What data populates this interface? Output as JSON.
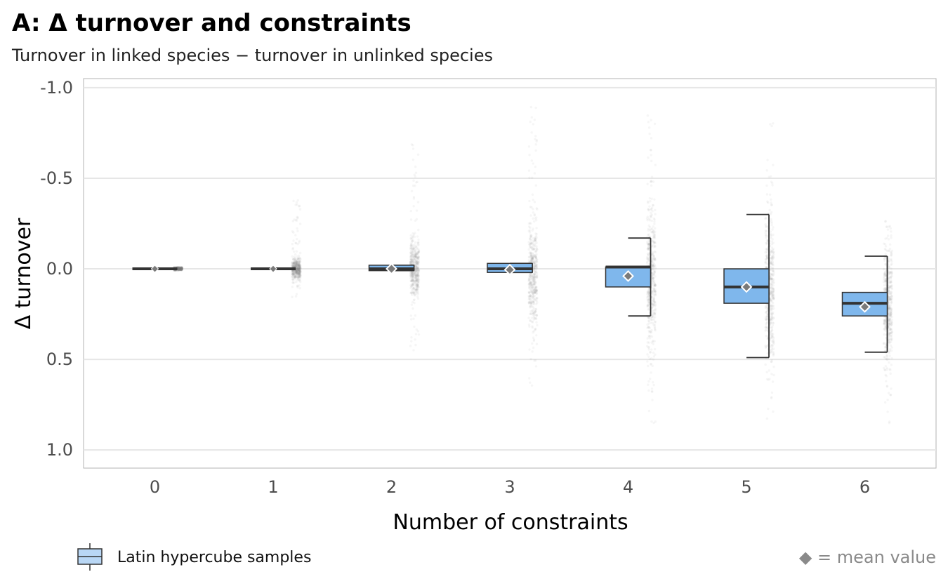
{
  "chart_data": {
    "type": "box",
    "title": "A: Δ turnover and constraints",
    "subtitle": "Turnover in linked species − turnover in unlinked species",
    "xlabel": "Number of constraints",
    "ylabel": "Δ turnover",
    "y_reversed": true,
    "ylim": [
      -1.05,
      1.1
    ],
    "yticks": [
      -1.0,
      -0.5,
      0.0,
      0.5,
      1.0
    ],
    "ytick_labels": [
      "-1.0",
      "-0.5",
      "0.0",
      "0.5",
      "1.0"
    ],
    "categories": [
      "0",
      "1",
      "2",
      "3",
      "4",
      "5",
      "6"
    ],
    "grid": "horizontal major",
    "series": [
      {
        "name": "Latin hypercube samples",
        "color": "#7fb7ec",
        "boxes": [
          {
            "x": "0",
            "q1": 0.0,
            "median": 0.0,
            "q3": 0.0,
            "whisker_low": 0.0,
            "whisker_high": 0.0,
            "mean": 0.0
          },
          {
            "x": "1",
            "q1": 0.0,
            "median": 0.0,
            "q3": 0.0,
            "whisker_low": 0.0,
            "whisker_high": 0.0,
            "mean": 0.0
          },
          {
            "x": "2",
            "q1": -0.02,
            "median": 0.0,
            "q3": 0.01,
            "whisker_low": -0.02,
            "whisker_high": 0.01,
            "mean": 0.0
          },
          {
            "x": "3",
            "q1": -0.03,
            "median": 0.0,
            "q3": 0.02,
            "whisker_low": -0.03,
            "whisker_high": 0.02,
            "mean": 0.005
          },
          {
            "x": "4",
            "q1": -0.01,
            "median": -0.01,
            "q3": 0.1,
            "whisker_low": -0.17,
            "whisker_high": 0.26,
            "mean": 0.04
          },
          {
            "x": "5",
            "q1": 0.0,
            "median": 0.1,
            "q3": 0.19,
            "whisker_low": -0.3,
            "whisker_high": 0.49,
            "mean": 0.1
          },
          {
            "x": "6",
            "q1": 0.13,
            "median": 0.19,
            "q3": 0.26,
            "whisker_low": -0.07,
            "whisker_high": 0.46,
            "mean": 0.21
          }
        ]
      }
    ],
    "point_clouds": [
      {
        "x": "0",
        "center": 0.0,
        "spread": 0.004,
        "min": -0.01,
        "max": 0.01
      },
      {
        "x": "1",
        "center": 0.0,
        "spread": 0.03,
        "min": -0.42,
        "max": 0.18
      },
      {
        "x": "2",
        "center": 0.0,
        "spread": 0.08,
        "min": -0.72,
        "max": 0.5
      },
      {
        "x": "3",
        "center": 0.03,
        "spread": 0.14,
        "min": -0.9,
        "max": 0.73
      },
      {
        "x": "4",
        "center": 0.05,
        "spread": 0.2,
        "min": -0.88,
        "max": 0.9
      },
      {
        "x": "5",
        "center": 0.12,
        "spread": 0.2,
        "min": -0.82,
        "max": 0.88
      },
      {
        "x": "6",
        "center": 0.2,
        "spread": 0.15,
        "min": -0.28,
        "max": 0.87
      }
    ],
    "legend": {
      "position": "bottom-left",
      "label": "Latin hypercube samples"
    },
    "note": "◆ = mean value"
  }
}
